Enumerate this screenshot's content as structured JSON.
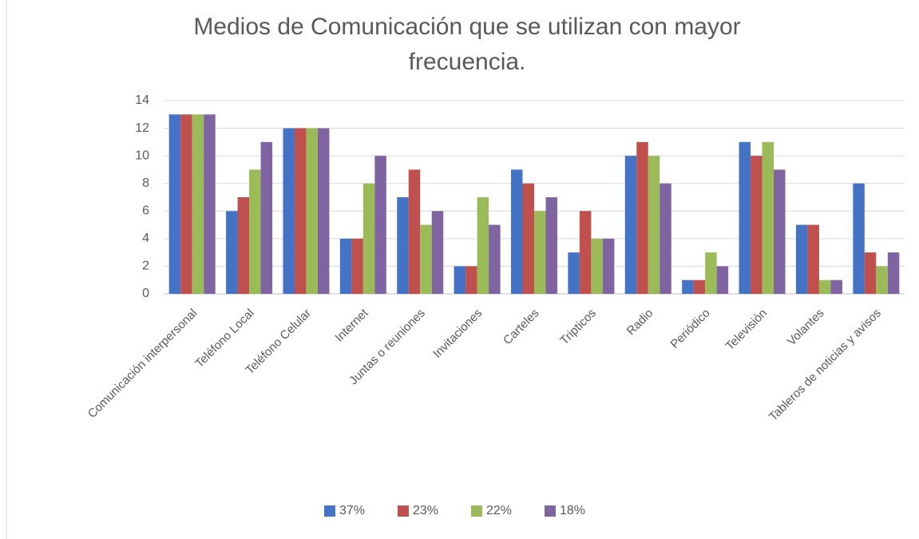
{
  "chart_data": {
    "type": "bar",
    "title": "Medios de Comunicación que se utilizan con mayor frecuencia.",
    "categories": [
      "Comunicación interpersonal",
      "Teléfono Local",
      "Teléfono Celular",
      "Internet",
      "Juntas o reuniones",
      "Invitaciones",
      "Carteles",
      "Tripticos",
      "Radio",
      "Periódico",
      "Televisión",
      "Volantes",
      "Tableros de noticias y avisos"
    ],
    "series": [
      {
        "name": "37%",
        "color": "#4472c4",
        "values": [
          13,
          6,
          12,
          4,
          7,
          2,
          9,
          3,
          10,
          1,
          11,
          5,
          8
        ]
      },
      {
        "name": "23%",
        "color": "#c0504d",
        "values": [
          13,
          7,
          12,
          4,
          9,
          2,
          8,
          6,
          11,
          1,
          10,
          5,
          3
        ]
      },
      {
        "name": "22%",
        "color": "#9bbb59",
        "values": [
          13,
          9,
          12,
          8,
          5,
          7,
          6,
          4,
          10,
          3,
          11,
          1,
          2
        ]
      },
      {
        "name": "18%",
        "color": "#8064a2",
        "values": [
          13,
          11,
          12,
          10,
          6,
          5,
          7,
          4,
          8,
          2,
          9,
          1,
          3
        ]
      }
    ],
    "ylim": [
      0,
      14
    ],
    "yticks": [
      0,
      2,
      4,
      6,
      8,
      10,
      12,
      14
    ],
    "grid": true,
    "legend": "bottom"
  }
}
